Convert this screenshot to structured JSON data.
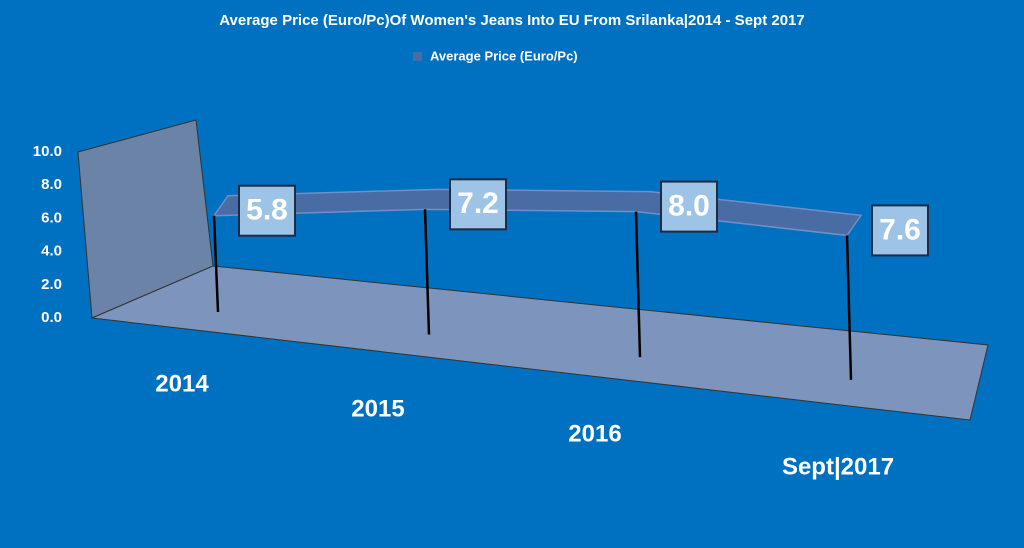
{
  "chart_data": {
    "type": "line",
    "title": "Average Price (Euro/Pc)Of Women's Jeans Into EU From Srilanka|2014 - Sept 2017",
    "categories": [
      "2014",
      "2015",
      "2016",
      "Sept|2017"
    ],
    "series": [
      {
        "name": "Average Price (Euro/Pc)",
        "color": "#4a6ca5",
        "values": [
          5.8,
          7.2,
          8.0,
          7.6
        ],
        "value_labels": [
          "5.8",
          "7.2",
          "8.0",
          "7.6"
        ]
      }
    ],
    "ylim": [
      0,
      10
    ],
    "yticks": [
      {
        "value": 0,
        "label": "0.0"
      },
      {
        "value": 2,
        "label": "2.0"
      },
      {
        "value": 4,
        "label": "4.0"
      },
      {
        "value": 6,
        "label": "6.0"
      },
      {
        "value": 8,
        "label": "8.0"
      },
      {
        "value": 10,
        "label": "10.0"
      }
    ],
    "legend": "top"
  }
}
